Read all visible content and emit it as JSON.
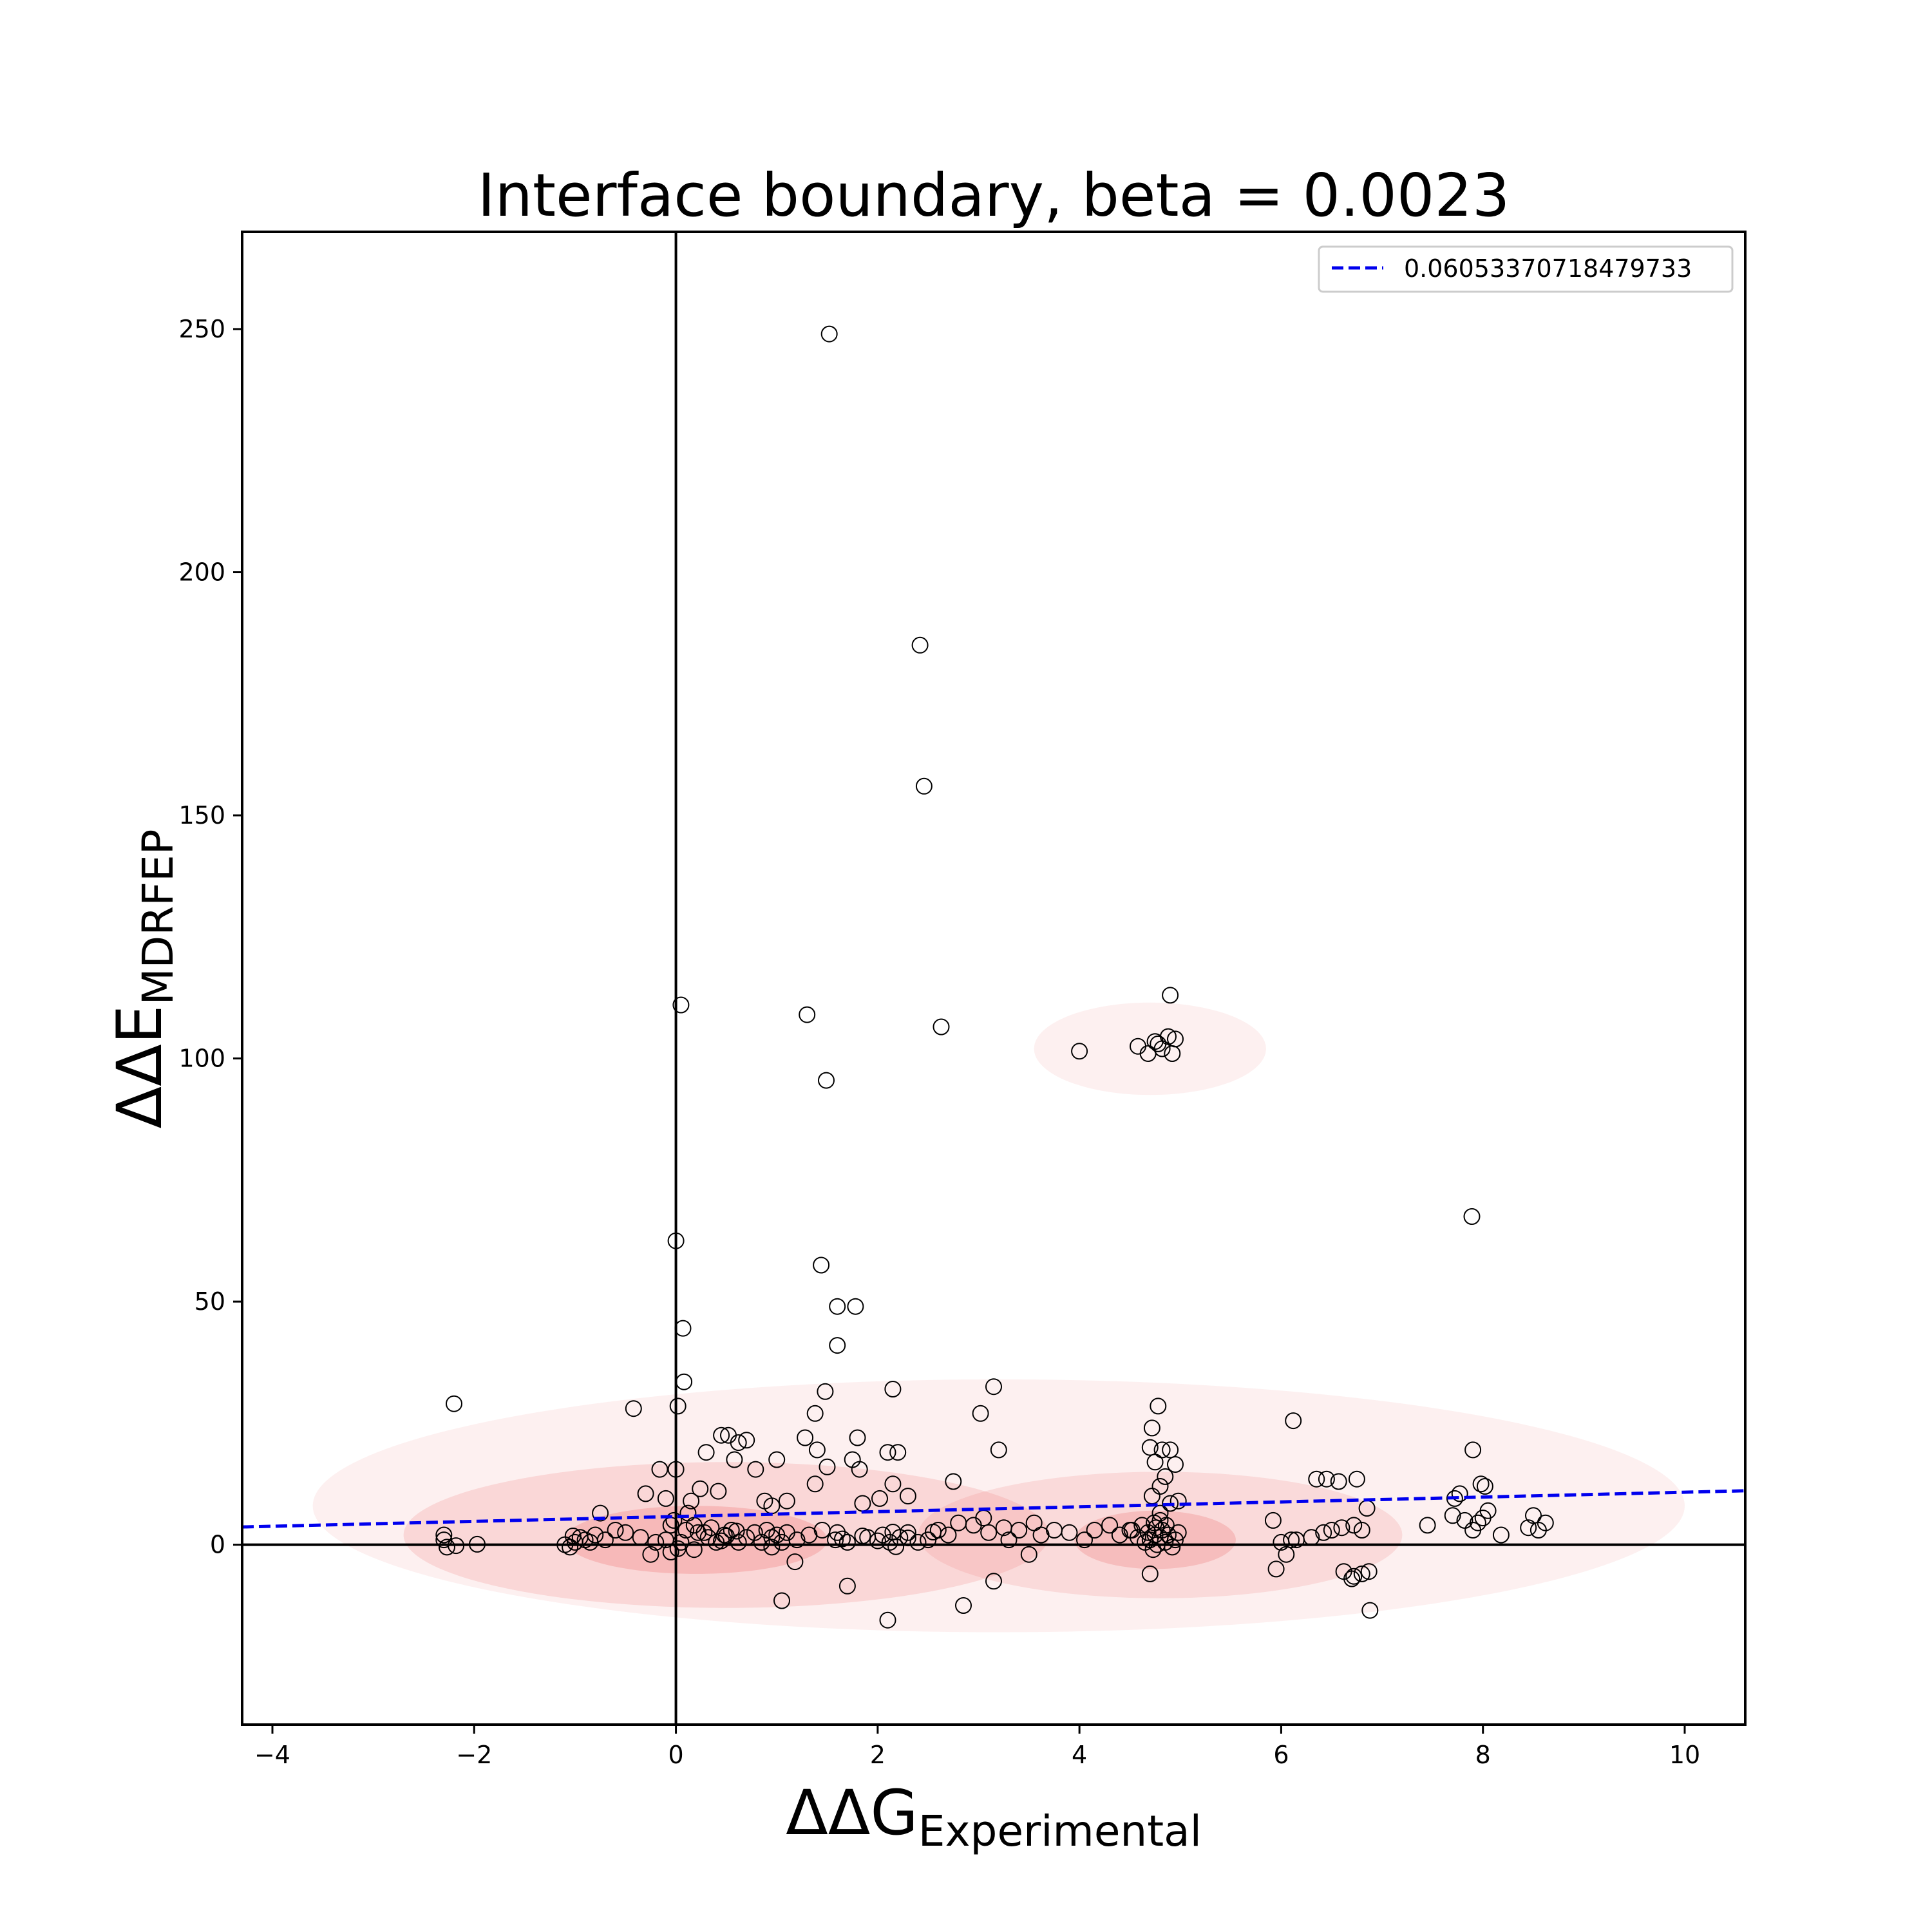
{
  "chart_data": {
    "type": "scatter",
    "title": "Interface boundary, beta = 0.0023",
    "xlabel": {
      "symbol": "ΔΔG",
      "subscript": "Experimental"
    },
    "ylabel": {
      "symbol": "ΔΔE",
      "subscript": "MDRFEP"
    },
    "xlim": [
      -4.3,
      10.6
    ],
    "ylim": [
      -37,
      270
    ],
    "x_ticks": [
      -4,
      -2,
      0,
      2,
      4,
      6,
      8,
      10
    ],
    "x_tick_labels": [
      "−4",
      "−2",
      "0",
      "2",
      "4",
      "6",
      "8",
      "10"
    ],
    "y_ticks": [
      0,
      50,
      100,
      150,
      200,
      250
    ],
    "y_tick_labels": [
      "0",
      "50",
      "100",
      "150",
      "200",
      "250"
    ],
    "grid": false,
    "reference_lines": {
      "x": 0,
      "y": 0
    },
    "legend": {
      "position": "top-right",
      "entries": [
        "0.06053370718479733"
      ]
    },
    "fit_line": {
      "slope": 0.5,
      "intercept": 5.8,
      "x_range": [
        -4.3,
        10.6
      ],
      "style": "dashed",
      "color": "#0000ee"
    },
    "density_regions": [
      {
        "center": [
          3.2,
          8
        ],
        "spread": [
          6.8,
          26
        ],
        "level": 0.12
      },
      {
        "center": [
          4.7,
          102
        ],
        "spread": [
          1.15,
          9.5
        ],
        "level": 0.12
      },
      {
        "center": [
          0.5,
          2
        ],
        "spread": [
          3.2,
          15
        ],
        "level": 0.22
      },
      {
        "center": [
          4.8,
          2
        ],
        "spread": [
          2.4,
          13
        ],
        "level": 0.2
      },
      {
        "center": [
          0.2,
          1
        ],
        "spread": [
          1.3,
          7
        ],
        "level": 0.35
      },
      {
        "center": [
          4.75,
          1
        ],
        "spread": [
          0.8,
          6
        ],
        "level": 0.32
      }
    ],
    "series": [
      {
        "points": [
          [
            1.52,
            249
          ],
          [
            2.42,
            185
          ],
          [
            2.46,
            156
          ],
          [
            0.05,
            111
          ],
          [
            1.3,
            109
          ],
          [
            2.63,
            106.5
          ],
          [
            1.49,
            95.5
          ],
          [
            4.0,
            101.5
          ],
          [
            4.58,
            102.5
          ],
          [
            4.68,
            101
          ],
          [
            4.78,
            103
          ],
          [
            4.82,
            102
          ],
          [
            4.88,
            104.5
          ],
          [
            4.92,
            101
          ],
          [
            4.95,
            104
          ],
          [
            4.9,
            113
          ],
          [
            4.75,
            103.5
          ],
          [
            7.89,
            67.5
          ],
          [
            0.0,
            62.5
          ],
          [
            1.44,
            57.5
          ],
          [
            1.6,
            49
          ],
          [
            1.78,
            49
          ],
          [
            0.07,
            44.5
          ],
          [
            1.6,
            41
          ],
          [
            -2.2,
            29
          ],
          [
            -0.42,
            28
          ],
          [
            0.02,
            28.5
          ],
          [
            0.08,
            33.5
          ],
          [
            1.48,
            31.5
          ],
          [
            1.38,
            27
          ],
          [
            2.15,
            32
          ],
          [
            3.15,
            32.5
          ],
          [
            3.02,
            27
          ],
          [
            3.2,
            19.5
          ],
          [
            4.78,
            28.5
          ],
          [
            4.72,
            24
          ],
          [
            6.12,
            25.5
          ],
          [
            4.7,
            20
          ],
          [
            4.82,
            19.5
          ],
          [
            4.9,
            19.5
          ],
          [
            4.95,
            16.5
          ],
          [
            4.75,
            17
          ],
          [
            4.85,
            14
          ],
          [
            4.8,
            12
          ],
          [
            4.72,
            10
          ],
          [
            4.9,
            8.5
          ],
          [
            4.98,
            9
          ],
          [
            4.8,
            6.5
          ],
          [
            0.45,
            22.5
          ],
          [
            0.52,
            22.5
          ],
          [
            0.7,
            21.5
          ],
          [
            0.62,
            21
          ],
          [
            0.3,
            19
          ],
          [
            1.28,
            22
          ],
          [
            1.4,
            19.5
          ],
          [
            1.8,
            22
          ],
          [
            2.1,
            19
          ],
          [
            2.2,
            19
          ],
          [
            1.75,
            17.5
          ],
          [
            1.82,
            15.5
          ],
          [
            1.5,
            16
          ],
          [
            1.38,
            12.5
          ],
          [
            1.0,
            17.5
          ],
          [
            0.58,
            17.5
          ],
          [
            0.79,
            15.5
          ],
          [
            0.42,
            11
          ],
          [
            0.24,
            11.5
          ],
          [
            -0.16,
            15.5
          ],
          [
            0.0,
            15.5
          ],
          [
            -0.3,
            10.5
          ],
          [
            -0.1,
            9.5
          ],
          [
            0.15,
            9
          ],
          [
            0.88,
            9
          ],
          [
            0.95,
            8
          ],
          [
            1.1,
            9
          ],
          [
            1.85,
            8.5
          ],
          [
            2.02,
            9.5
          ],
          [
            2.15,
            12.5
          ],
          [
            2.3,
            10
          ],
          [
            2.75,
            13
          ],
          [
            6.35,
            13.5
          ],
          [
            6.45,
            13.5
          ],
          [
            6.57,
            13
          ],
          [
            6.75,
            13.5
          ],
          [
            7.9,
            19.5
          ],
          [
            7.77,
            10.5
          ],
          [
            7.72,
            9.5
          ],
          [
            7.98,
            12.5
          ],
          [
            8.02,
            12
          ],
          [
            7.7,
            6
          ],
          [
            7.82,
            5
          ],
          [
            7.95,
            4.5
          ],
          [
            8.05,
            7
          ],
          [
            8.0,
            5.5
          ],
          [
            7.9,
            3
          ],
          [
            8.45,
            3.5
          ],
          [
            8.5,
            6
          ],
          [
            8.62,
            4.5
          ],
          [
            8.55,
            3
          ],
          [
            8.18,
            2
          ],
          [
            7.45,
            4
          ],
          [
            6.85,
            7.5
          ],
          [
            6.8,
            3
          ],
          [
            6.72,
            4
          ],
          [
            6.6,
            3.5
          ],
          [
            6.5,
            3
          ],
          [
            6.42,
            2.5
          ],
          [
            6.3,
            1.5
          ],
          [
            5.92,
            5
          ],
          [
            6.0,
            0.5
          ],
          [
            6.1,
            1
          ],
          [
            6.15,
            1
          ],
          [
            5.95,
            -5
          ],
          [
            6.05,
            -2
          ],
          [
            6.62,
            -5.5
          ],
          [
            6.72,
            -6.5
          ],
          [
            6.8,
            -6
          ],
          [
            6.87,
            -5.5
          ],
          [
            6.88,
            -13.5
          ],
          [
            6.7,
            -7
          ],
          [
            3.15,
            -7.5
          ],
          [
            3.5,
            -2
          ],
          [
            2.85,
            -12.5
          ],
          [
            2.1,
            -15.5
          ],
          [
            1.7,
            -8.5
          ],
          [
            1.05,
            -11.5
          ],
          [
            1.18,
            -3.5
          ],
          [
            0.95,
            -0.5
          ],
          [
            -0.25,
            -2
          ],
          [
            -0.05,
            -1.5
          ],
          [
            0.18,
            -1
          ],
          [
            0.02,
            -0.8
          ],
          [
            -0.02,
            5
          ],
          [
            0.1,
            3
          ],
          [
            0.22,
            2.5
          ],
          [
            0.32,
            1.5
          ],
          [
            -0.1,
            1
          ],
          [
            0.05,
            0.5
          ],
          [
            -0.2,
            0.5
          ],
          [
            -0.35,
            1.5
          ],
          [
            -0.5,
            2.5
          ],
          [
            -0.6,
            3
          ],
          [
            -0.7,
            1
          ],
          [
            -0.75,
            6.5
          ],
          [
            -0.85,
            0.5
          ],
          [
            -0.9,
            1
          ],
          [
            -0.95,
            1.5
          ],
          [
            -1.0,
            0.5
          ],
          [
            -1.05,
            -0.5
          ],
          [
            -1.1,
            0
          ],
          [
            -1.02,
            1.8
          ],
          [
            -0.8,
            2
          ],
          [
            -2.3,
            1
          ],
          [
            -2.3,
            2
          ],
          [
            -2.27,
            -0.5
          ],
          [
            -2.18,
            -0.2
          ],
          [
            -1.97,
            0.1
          ],
          [
            0.4,
            0.5
          ],
          [
            0.48,
            2
          ],
          [
            0.55,
            3
          ],
          [
            0.62,
            0.5
          ],
          [
            0.7,
            1.5
          ],
          [
            0.78,
            2.5
          ],
          [
            0.85,
            0.5
          ],
          [
            1.2,
            1
          ],
          [
            1.32,
            2
          ],
          [
            1.45,
            3
          ],
          [
            1.58,
            1
          ],
          [
            1.7,
            0.5
          ],
          [
            1.9,
            1.5
          ],
          [
            2.05,
            2
          ],
          [
            2.12,
            0.5
          ],
          [
            2.22,
            1.5
          ],
          [
            2.3,
            2.5
          ],
          [
            2.4,
            0.5
          ],
          [
            2.5,
            1
          ],
          [
            2.6,
            3
          ],
          [
            2.7,
            2
          ],
          [
            2.8,
            4.5
          ],
          [
            2.95,
            4
          ],
          [
            3.05,
            5.5
          ],
          [
            3.1,
            2.5
          ],
          [
            3.25,
            3.5
          ],
          [
            3.3,
            1
          ],
          [
            3.4,
            3
          ],
          [
            3.55,
            4.5
          ],
          [
            3.62,
            2
          ],
          [
            3.75,
            3
          ],
          [
            3.9,
            2.5
          ],
          [
            4.05,
            1
          ],
          [
            4.15,
            3
          ],
          [
            4.3,
            4
          ],
          [
            4.4,
            2
          ],
          [
            4.5,
            3
          ],
          [
            4.58,
            1.5
          ],
          [
            4.65,
            0.5
          ],
          [
            4.68,
            2.5
          ],
          [
            4.7,
            1
          ],
          [
            4.73,
            -1
          ],
          [
            4.75,
            2
          ],
          [
            4.77,
            0
          ],
          [
            4.8,
            1.5
          ],
          [
            4.82,
            3
          ],
          [
            4.85,
            0.5
          ],
          [
            4.88,
            2
          ],
          [
            4.92,
            -0.5
          ],
          [
            4.95,
            1
          ],
          [
            4.98,
            2.5
          ],
          [
            4.7,
            -6
          ],
          [
            4.62,
            4
          ],
          [
            4.52,
            3
          ],
          [
            0.18,
            4
          ],
          [
            0.35,
            3.5
          ],
          [
            0.12,
            6.5
          ],
          [
            -0.05,
            4
          ],
          [
            0.28,
            2.5
          ],
          [
            1.0,
            2
          ],
          [
            1.05,
            0.5
          ],
          [
            1.1,
            2.5
          ],
          [
            0.9,
            3
          ],
          [
            0.95,
            1.5
          ],
          [
            0.5,
            1.8
          ],
          [
            0.6,
            2.8
          ],
          [
            0.45,
            0.8
          ],
          [
            1.6,
            2.5
          ],
          [
            1.65,
            1.2
          ],
          [
            2.0,
            0.8
          ],
          [
            2.15,
            2.6
          ],
          [
            2.3,
            1.4
          ],
          [
            2.55,
            2.6
          ],
          [
            1.85,
            1.8
          ],
          [
            2.18,
            -0.4
          ],
          [
            4.74,
            4.5
          ],
          [
            4.8,
            5
          ],
          [
            4.86,
            4
          ],
          [
            4.76,
            3.5
          ]
        ]
      }
    ]
  }
}
